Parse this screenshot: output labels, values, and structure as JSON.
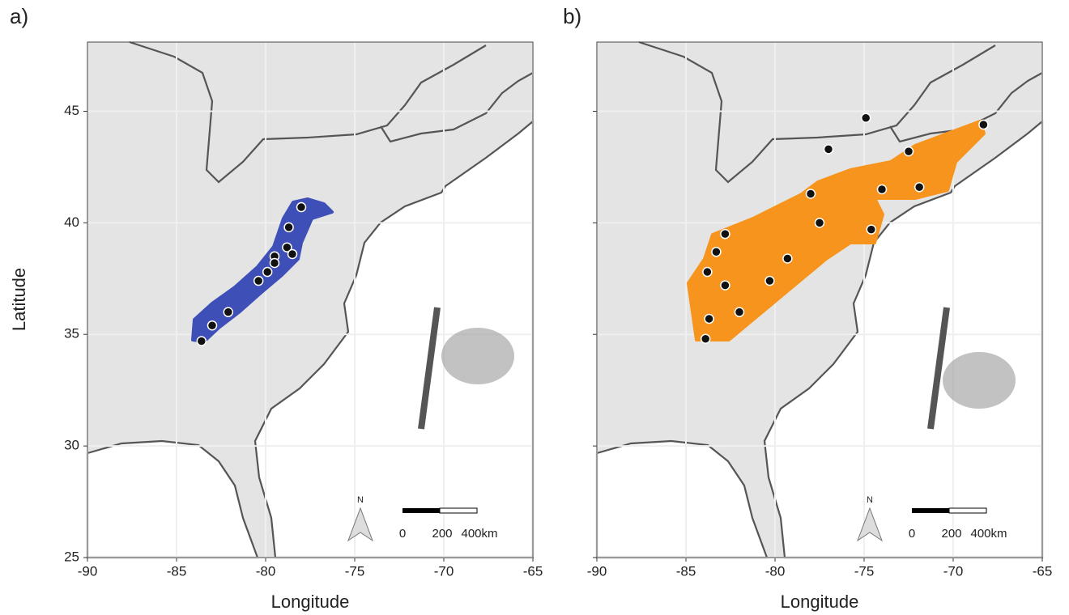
{
  "chart_data": [
    {
      "type": "scatter",
      "panel_label": "a)",
      "x_label": "Longitude",
      "y_label": "Latitude",
      "x": [
        -78.0,
        -78.7,
        -78.8,
        -78.5,
        -79.5,
        -79.5,
        -79.9,
        -80.4,
        -82.1,
        -83.0,
        -83.6
      ],
      "y": [
        40.7,
        39.8,
        38.9,
        38.6,
        38.5,
        38.2,
        37.8,
        37.4,
        36.0,
        35.4,
        34.7
      ],
      "point_color": "#111111",
      "range_color": "#3f4fb8",
      "xlim": [
        -90,
        -65
      ],
      "ylim": [
        25,
        48.1
      ],
      "xticks": [
        -90,
        -85,
        -80,
        -75,
        -70,
        -65
      ],
      "yticks": [
        25,
        30,
        35,
        40,
        45
      ],
      "grid": true,
      "north_label": "N",
      "scale_labels": [
        "0",
        "200",
        "400km"
      ]
    },
    {
      "type": "scatter",
      "panel_label": "b)",
      "x_label": "Longitude",
      "x": [
        -74.9,
        -68.3,
        -77.0,
        -72.5,
        -78.0,
        -74.0,
        -71.9,
        -77.5,
        -74.6,
        -82.8,
        -83.3,
        -79.3,
        -83.8,
        -82.8,
        -80.3,
        -82.0,
        -83.7,
        -83.9
      ],
      "y": [
        44.7,
        44.4,
        43.3,
        43.2,
        41.3,
        41.5,
        41.6,
        40.0,
        39.7,
        39.5,
        38.7,
        38.4,
        37.8,
        37.2,
        37.4,
        36.0,
        35.7,
        34.8
      ],
      "point_color": "#111111",
      "range_color": "#f7941d",
      "xlim": [
        -90,
        -65
      ],
      "ylim": [
        25,
        48.1
      ],
      "xticks": [
        -90,
        -85,
        -80,
        -75,
        -70,
        -65
      ],
      "yticks": [
        25,
        30,
        35,
        40,
        45
      ],
      "grid": true,
      "north_label": "N",
      "scale_labels": [
        "0",
        "200",
        "400km"
      ]
    }
  ]
}
